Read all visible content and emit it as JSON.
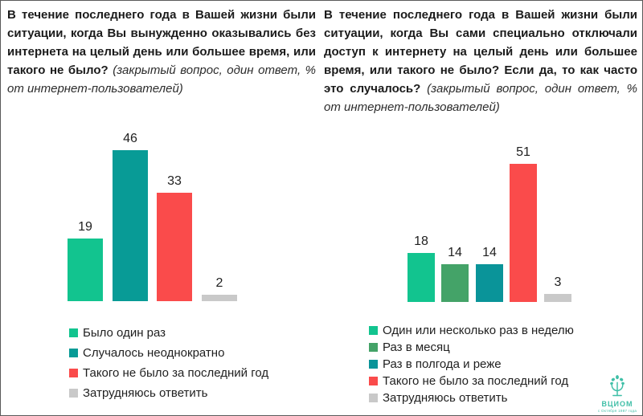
{
  "panels": [
    {
      "title_bold": "В течение последнего года в Вашей жизни были ситуации, когда Вы вынужденно оказывались без интернета на целый день или большее время, или такого не было?",
      "title_italic": "(закрытый вопрос, один ответ, % от интернет-пользователей)"
    },
    {
      "title_bold": "В течение последнего года в Вашей жизни были ситуации, когда Вы сами специально отключали доступ к интернету на целый день или большее время, или такого не было? Если да, то как часто это случалось?",
      "title_italic": "(закрытый вопрос, один ответ, % от интернет-пользователей)"
    }
  ],
  "chart_data": [
    {
      "type": "bar",
      "title": "Вынужденно оказывались без интернета на целый день или большее время",
      "unit": "%",
      "categories": [
        "Было один раз",
        "Случалось неоднократно",
        "Такого не было за последний год",
        "Затрудняюсь ответить"
      ],
      "values": [
        19,
        46,
        33,
        2
      ],
      "colors": [
        "#12C48F",
        "#089B96",
        "#FA4B4B",
        "#C9C9C9"
      ],
      "ylim": [
        0,
        50
      ],
      "grid": false,
      "value_labels": true,
      "legend_position": "bottom-left"
    },
    {
      "type": "bar",
      "title": "Сами специально отключали доступ к интернету на целый день или большее время",
      "unit": "%",
      "categories": [
        "Один или несколько раз в неделю",
        "Раз в месяц",
        "Раз в полгода и реже",
        "Такого не было за последний год",
        "Затрудняюсь ответить"
      ],
      "values": [
        18,
        14,
        14,
        51,
        3
      ],
      "colors": [
        "#12C48F",
        "#44A368",
        "#0A9499",
        "#FA4B4B",
        "#C9C9C9"
      ],
      "ylim": [
        0,
        55
      ],
      "grid": false,
      "value_labels": true,
      "legend_position": "bottom-left"
    }
  ],
  "logo": {
    "name": "ВЦИОМ",
    "tagline": "с Октября 1987 года",
    "color": "#3FBFA7"
  }
}
